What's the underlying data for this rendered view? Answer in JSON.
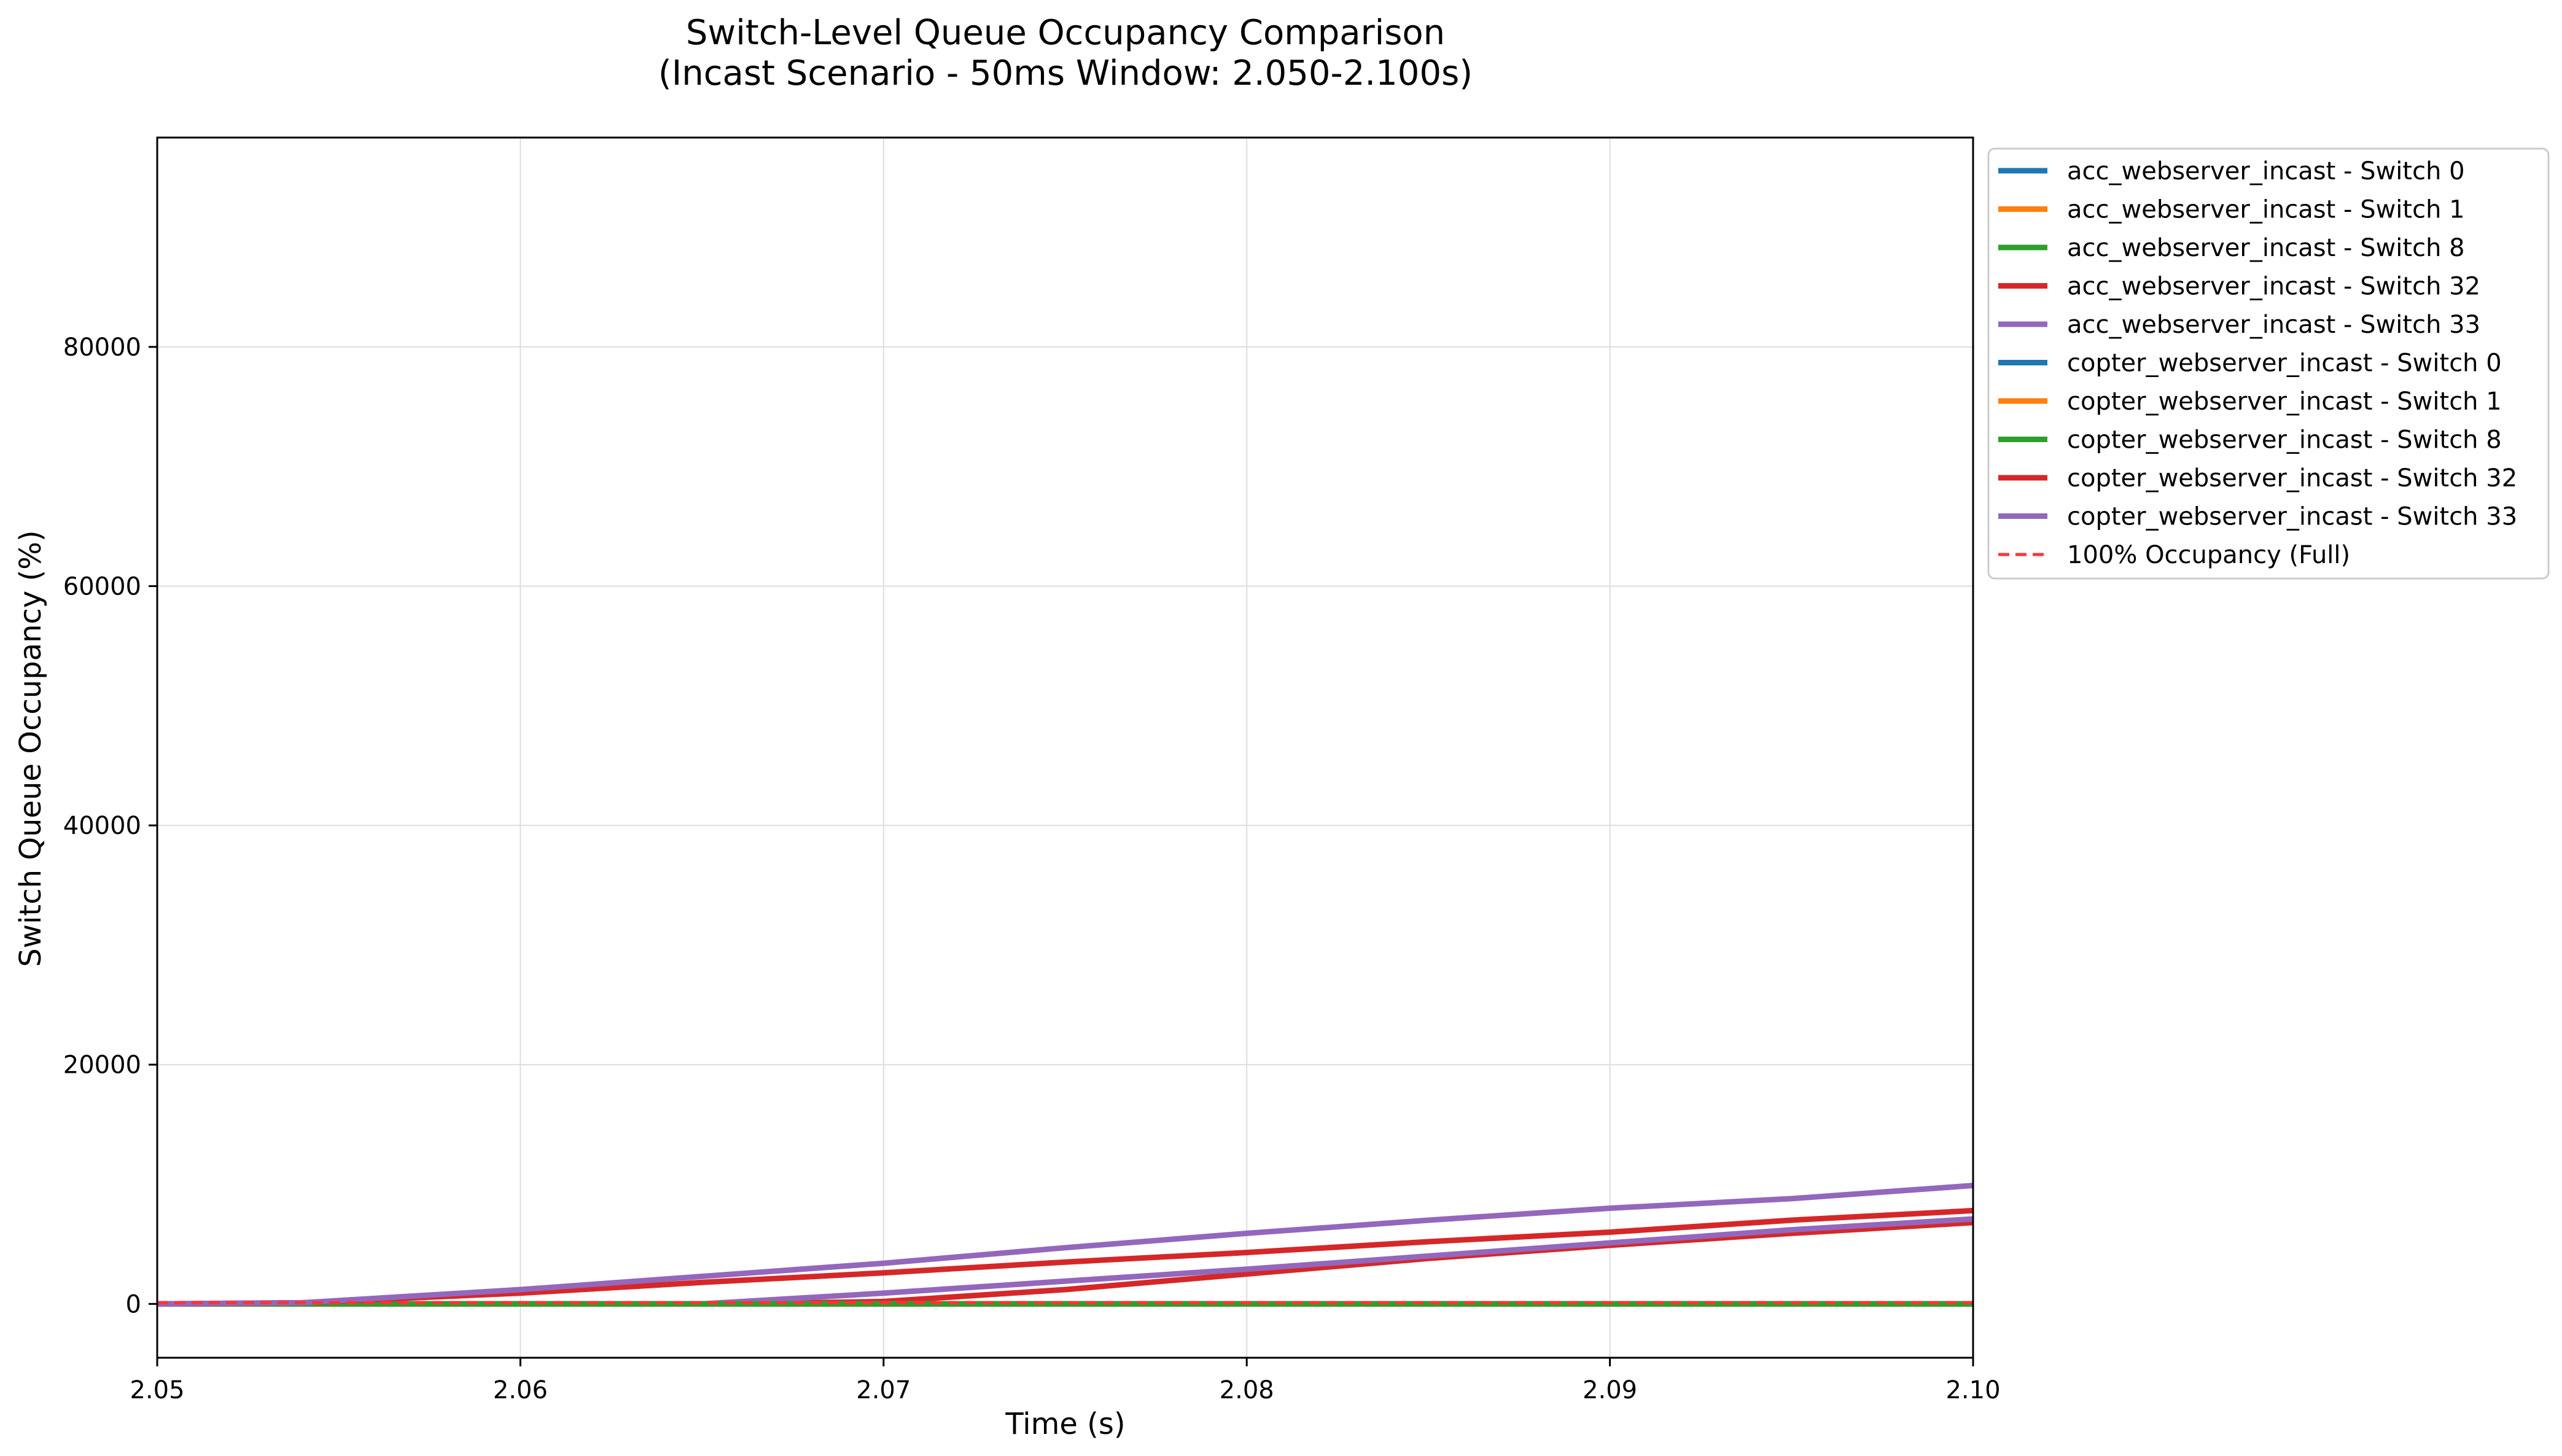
{
  "chart_data": {
    "type": "line",
    "title_line1": "Switch-Level Queue Occupancy Comparison",
    "title_line2": "(Incast Scenario - 50ms Window: 2.050-2.100s)",
    "xlabel": "Time (s)",
    "ylabel": "Switch Queue Occupancy (%)",
    "xlim": [
      2.05,
      2.1
    ],
    "ylim": [
      -4500,
      97500
    ],
    "xticks": [
      2.05,
      2.06,
      2.07,
      2.08,
      2.09,
      2.1
    ],
    "xtick_labels": [
      "2.05",
      "2.06",
      "2.07",
      "2.08",
      "2.09",
      "2.10"
    ],
    "yticks": [
      0,
      20000,
      40000,
      60000,
      80000
    ],
    "ytick_labels": [
      "0",
      "20000",
      "40000",
      "60000",
      "80000"
    ],
    "grid": true,
    "legend_position": "outside-right",
    "series": [
      {
        "name": "acc_webserver_incast - Switch 0",
        "color": "#1f77b4",
        "dash": false,
        "x": [
          2.05,
          2.1
        ],
        "y": [
          0,
          0
        ]
      },
      {
        "name": "acc_webserver_incast - Switch 1",
        "color": "#ff7f0e",
        "dash": false,
        "x": [
          2.05,
          2.1
        ],
        "y": [
          0,
          0
        ]
      },
      {
        "name": "acc_webserver_incast - Switch 8",
        "color": "#2ca02c",
        "dash": false,
        "x": [
          2.05,
          2.1
        ],
        "y": [
          0,
          0
        ]
      },
      {
        "name": "acc_webserver_incast - Switch 32",
        "color": "#d62728",
        "dash": false,
        "x": [
          2.05,
          2.066,
          2.07,
          2.075,
          2.08,
          2.085,
          2.09,
          2.095,
          2.1
        ],
        "y": [
          0,
          0,
          200,
          1200,
          2500,
          3800,
          4900,
          5900,
          6800
        ]
      },
      {
        "name": "acc_webserver_incast - Switch 33",
        "color": "#9467bd",
        "dash": false,
        "x": [
          2.05,
          2.065,
          2.07,
          2.075,
          2.08,
          2.085,
          2.09,
          2.095,
          2.1
        ],
        "y": [
          0,
          0,
          900,
          1900,
          2900,
          4000,
          5100,
          6200,
          7100
        ]
      },
      {
        "name": "copter_webserver_incast - Switch 0",
        "color": "#1f77b4",
        "dash": false,
        "x": [
          2.05,
          2.1
        ],
        "y": [
          0,
          0
        ]
      },
      {
        "name": "copter_webserver_incast - Switch 1",
        "color": "#ff7f0e",
        "dash": false,
        "x": [
          2.05,
          2.1
        ],
        "y": [
          0,
          0
        ]
      },
      {
        "name": "copter_webserver_incast - Switch 8",
        "color": "#2ca02c",
        "dash": false,
        "x": [
          2.05,
          2.1
        ],
        "y": [
          0,
          0
        ]
      },
      {
        "name": "copter_webserver_incast - Switch 32",
        "color": "#d62728",
        "dash": false,
        "x": [
          2.05,
          2.054,
          2.06,
          2.065,
          2.07,
          2.075,
          2.08,
          2.085,
          2.09,
          2.095,
          2.1
        ],
        "y": [
          0,
          100,
          900,
          1800,
          2600,
          3500,
          4300,
          5200,
          6000,
          7000,
          7800
        ]
      },
      {
        "name": "copter_webserver_incast - Switch 33",
        "color": "#9467bd",
        "dash": false,
        "x": [
          2.05,
          2.054,
          2.06,
          2.065,
          2.07,
          2.075,
          2.08,
          2.085,
          2.09,
          2.095,
          2.1
        ],
        "y": [
          0,
          100,
          1200,
          2300,
          3400,
          4700,
          5900,
          7000,
          8000,
          8800,
          9900
        ]
      },
      {
        "name": "100% Occupancy (Full)",
        "color": "#ff3333",
        "dash": true,
        "x": [
          2.05,
          2.1
        ],
        "y": [
          100,
          100
        ]
      }
    ]
  }
}
